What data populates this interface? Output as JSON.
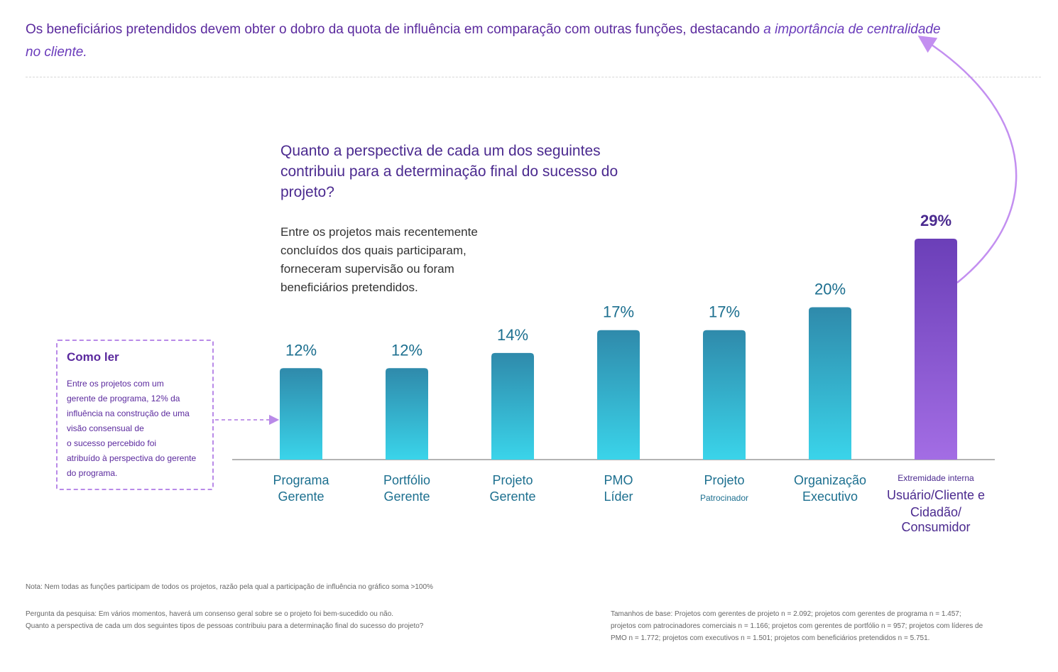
{
  "headline": {
    "text": "Os beneficiários pretendidos devem obter o dobro da quota de influência em comparação com outras funções, destacando",
    "emphasis": "a importância de centralidade no cliente."
  },
  "question": "Quanto a perspectiva de cada um dos seguintes contribuiu para a determinação final do sucesso do projeto?",
  "subtitle": "Entre os projetos mais recentemente concluídos dos quais participaram, forneceram supervisão ou foram beneficiários pretendidos.",
  "how_to_read": {
    "title": "Como ler",
    "lines": [
      "Entre os projetos com um",
      "gerente de programa, 12% da",
      "influência na construção de uma",
      "visão consensual de",
      "o sucesso percebido foi",
      "atribuído à perspectiva do gerente",
      "do programa."
    ]
  },
  "footer": {
    "note": "Nota: Nem todas as funções participam de todos os projetos, razão pela qual a participação de influência no gráfico soma >100%",
    "question_lines": [
      "Pergunta da pesquisa: Em vários momentos, haverá um consenso geral sobre se o projeto foi bem-sucedido ou não.",
      "Quanto a perspectiva de cada um dos seguintes tipos de pessoas contribuiu para a determinação final do sucesso do projeto?"
    ],
    "base_lines": [
      "Tamanhos de base: Projetos com gerentes de projeto n = 2.092; projetos com gerentes de programa n = 1.457;",
      "projetos com patrocinadores comerciais n = 1.166; projetos com gerentes de portfólio n = 957; projetos com líderes de",
      "PMO n = 1.772; projetos com executivos n = 1.501; projetos com beneficiários pretendidos n = 5.751."
    ]
  },
  "colors": {
    "teal_top": "#2f8aab",
    "teal_bottom": "#3ad4ea",
    "purple_top": "#6b3fb8",
    "purple_bottom": "#a36de4",
    "teal_label": "#1c6f8f",
    "purple_label": "#4b2a8f",
    "arrow": "#c38ff0"
  },
  "chart_data": {
    "type": "bar",
    "categories": [
      "Programa Gerente",
      "Portfólio Gerente",
      "Projeto Gerente",
      "PMO Líder",
      "Projeto Patrocinador",
      "Organização Executivo",
      "Extremidade interna Usuário/Cliente e Cidadão/ Consumidor"
    ],
    "values": [
      12,
      12,
      14,
      17,
      17,
      20,
      29
    ],
    "value_labels": [
      "12%",
      "12%",
      "14%",
      "17%",
      "17%",
      "20%",
      "29%"
    ],
    "category_label_lines": [
      [
        {
          "t": "Programa"
        },
        {
          "t": "Gerente"
        }
      ],
      [
        {
          "t": "Portfólio"
        },
        {
          "t": "Gerente"
        }
      ],
      [
        {
          "t": "Projeto"
        },
        {
          "t": "Gerente"
        }
      ],
      [
        {
          "t": "PMO"
        },
        {
          "t": "Líder"
        }
      ],
      [
        {
          "t": "Projeto"
        },
        {
          "t": "Patrocinador",
          "small": true
        }
      ],
      [
        {
          "t": "Organização"
        },
        {
          "t": "Executivo"
        }
      ],
      [
        {
          "t": "Extremidade interna",
          "small": true
        },
        {
          "t": "Usuário/Cliente e"
        },
        {
          "t": "Cidadão/"
        },
        {
          "t": "Consumidor"
        }
      ]
    ],
    "highlight_index": 6,
    "ylim": [
      0,
      29
    ],
    "grid": false,
    "legend": "none"
  }
}
